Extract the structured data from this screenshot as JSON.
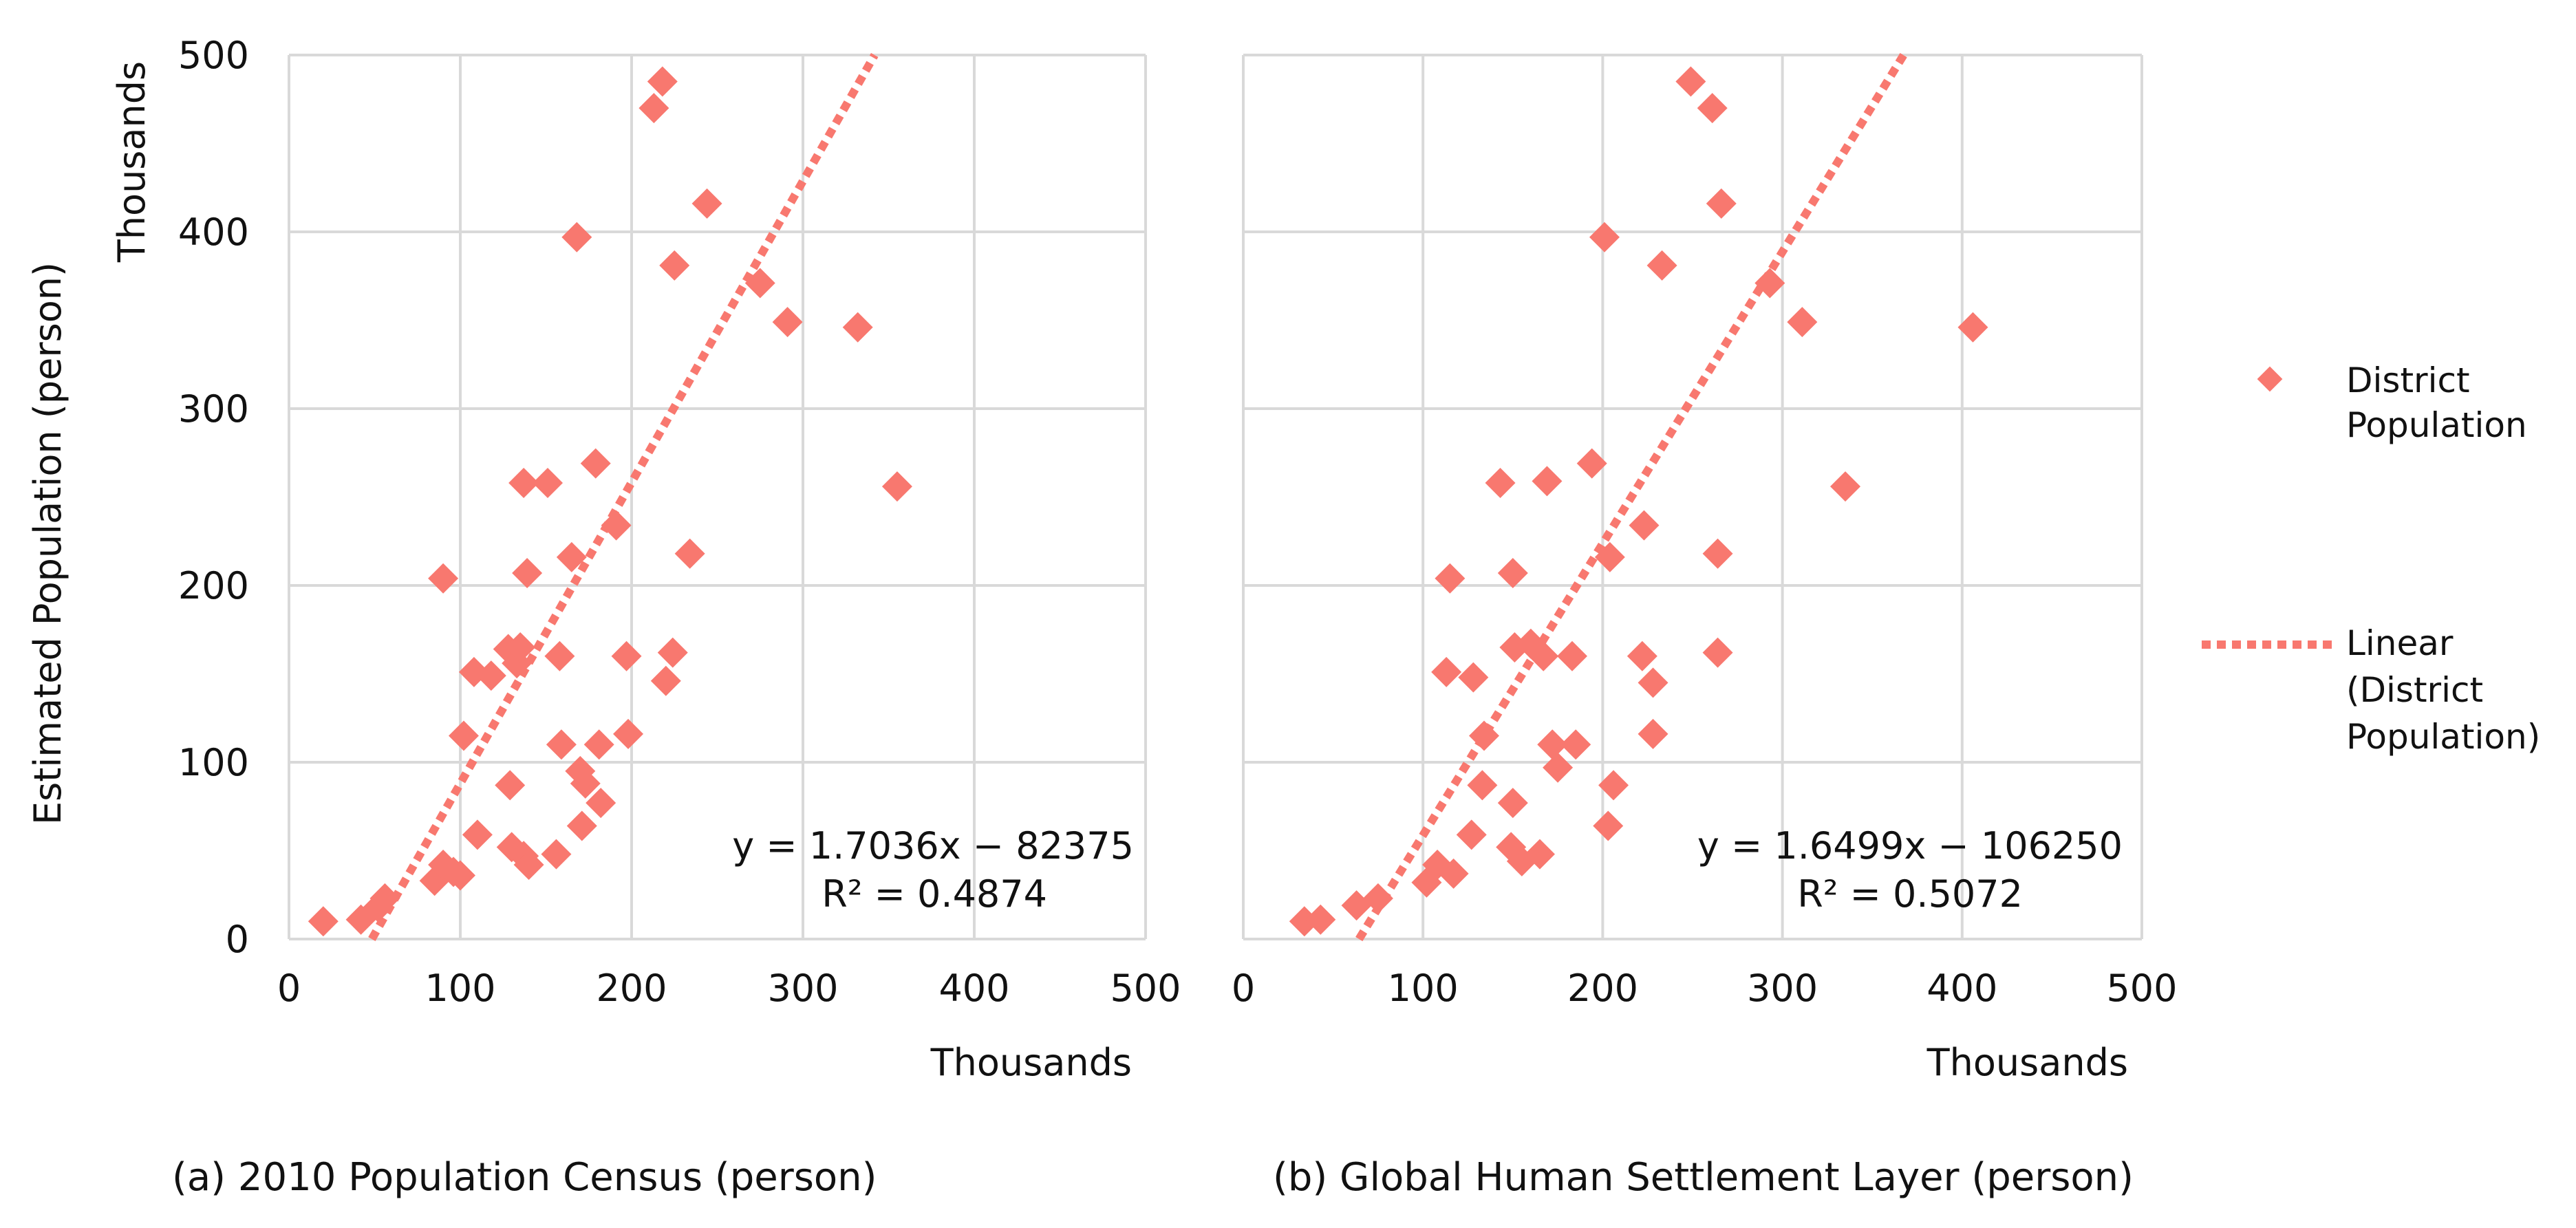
{
  "colors": {
    "marker": "#f8786f",
    "trendline": "#f8786f",
    "grid": "#d9d9d9",
    "text": "#111111"
  },
  "chart_data": [
    {
      "type": "scatter",
      "id": "a",
      "caption": "(a) 2010 Population Census (person)",
      "xlabel": "Thousands",
      "ylabel": "Estimated Population (person)",
      "ylabel_units": "Thousands",
      "xlim": [
        0,
        500
      ],
      "ylim": [
        0,
        500
      ],
      "xticks": [
        "0",
        "100",
        "200",
        "300",
        "400",
        "500"
      ],
      "yticks": [
        "0",
        "100",
        "200",
        "300",
        "400",
        "500"
      ],
      "grid": true,
      "series_name": "District Population",
      "points": [
        [
          20,
          10
        ],
        [
          42,
          11
        ],
        [
          52,
          18
        ],
        [
          56,
          23
        ],
        [
          85,
          33
        ],
        [
          90,
          42
        ],
        [
          96,
          38
        ],
        [
          100,
          36
        ],
        [
          102,
          115
        ],
        [
          108,
          151
        ],
        [
          110,
          59
        ],
        [
          90,
          204
        ],
        [
          118,
          149
        ],
        [
          128,
          164
        ],
        [
          129,
          87
        ],
        [
          133,
          156
        ],
        [
          135,
          165
        ],
        [
          130,
          52
        ],
        [
          137,
          47
        ],
        [
          140,
          42
        ],
        [
          137,
          258
        ],
        [
          139,
          207
        ],
        [
          151,
          258
        ],
        [
          156,
          48
        ],
        [
          158,
          160
        ],
        [
          159,
          110
        ],
        [
          165,
          216
        ],
        [
          168,
          397
        ],
        [
          170,
          95
        ],
        [
          171,
          64
        ],
        [
          173,
          88
        ],
        [
          179,
          269
        ],
        [
          181,
          110
        ],
        [
          182,
          77
        ],
        [
          191,
          234
        ],
        [
          197,
          160
        ],
        [
          198,
          116
        ],
        [
          213,
          470
        ],
        [
          218,
          485
        ],
        [
          220,
          146
        ],
        [
          224,
          162
        ],
        [
          225,
          381
        ],
        [
          234,
          218
        ],
        [
          244,
          416
        ],
        [
          275,
          371
        ],
        [
          291,
          349
        ],
        [
          332,
          346
        ],
        [
          355,
          256
        ]
      ],
      "trendline": {
        "name": "Linear (District Population)",
        "slope": 1.7036,
        "intercept": -82375
      },
      "equation": "y = 1.7036x − 82375",
      "r_squared": "R² = 0.4874"
    },
    {
      "type": "scatter",
      "id": "b",
      "caption": "(b) Global Human Settlement Layer (person)",
      "xlabel": "Thousands",
      "xlim": [
        0,
        500
      ],
      "ylim": [
        0,
        500
      ],
      "xticks": [
        "0",
        "100",
        "200",
        "300",
        "400",
        "500"
      ],
      "grid": true,
      "series_name": "District Population",
      "points": [
        [
          34,
          10
        ],
        [
          43,
          11
        ],
        [
          63,
          19
        ],
        [
          75,
          23
        ],
        [
          102,
          32
        ],
        [
          108,
          42
        ],
        [
          117,
          37
        ],
        [
          115,
          204
        ],
        [
          113,
          151
        ],
        [
          128,
          148
        ],
        [
          127,
          59
        ],
        [
          133,
          87
        ],
        [
          134,
          115
        ],
        [
          143,
          258
        ],
        [
          149,
          52
        ],
        [
          150,
          77
        ],
        [
          150,
          207
        ],
        [
          151,
          165
        ],
        [
          155,
          44
        ],
        [
          160,
          167
        ],
        [
          165,
          48
        ],
        [
          167,
          160
        ],
        [
          169,
          259
        ],
        [
          172,
          110
        ],
        [
          175,
          97
        ],
        [
          183,
          160
        ],
        [
          185,
          110
        ],
        [
          194,
          269
        ],
        [
          201,
          397
        ],
        [
          203,
          64
        ],
        [
          204,
          216
        ],
        [
          206,
          87
        ],
        [
          222,
          160
        ],
        [
          223,
          234
        ],
        [
          228,
          145
        ],
        [
          228,
          116
        ],
        [
          233,
          381
        ],
        [
          249,
          485
        ],
        [
          261,
          470
        ],
        [
          264,
          218
        ],
        [
          264,
          162
        ],
        [
          266,
          416
        ],
        [
          293,
          371
        ],
        [
          311,
          349
        ],
        [
          335,
          256
        ],
        [
          406,
          346
        ]
      ],
      "trendline": {
        "name": "Linear (District Population)",
        "slope": 1.6499,
        "intercept": -106250
      },
      "equation": "y = 1.6499x − 106250",
      "r_squared": "R² = 0.5072"
    }
  ],
  "legend": {
    "marker_label_line1": "District",
    "marker_label_line2": "Population",
    "line_label_line1": "Linear",
    "line_label_line2": "(District",
    "line_label_line3": "Population)"
  }
}
